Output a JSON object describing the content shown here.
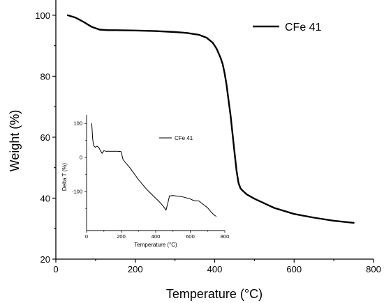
{
  "chart_data": [
    {
      "type": "line",
      "xlabel": "Temperature (°C)",
      "ylabel": "Weight (%)",
      "xlim": [
        0,
        800
      ],
      "ylim": [
        20,
        105
      ],
      "xticks": [
        0,
        200,
        400,
        600,
        800
      ],
      "yticks": [
        20,
        40,
        60,
        80,
        100
      ],
      "grid": false,
      "legend_position": "top-right",
      "series": [
        {
          "name": "CFe 41",
          "x": [
            30,
            50,
            70,
            90,
            110,
            130,
            150,
            200,
            250,
            300,
            330,
            360,
            380,
            395,
            405,
            415,
            420,
            425,
            430,
            435,
            440,
            445,
            450,
            455,
            460,
            465,
            470,
            480,
            500,
            550,
            600,
            650,
            700,
            750
          ],
          "y": [
            100,
            99.2,
            97.8,
            96.2,
            95.3,
            95.1,
            95.1,
            95.0,
            94.8,
            94.5,
            94.2,
            93.6,
            92.6,
            91.0,
            89.0,
            86.0,
            84.0,
            81.0,
            77.0,
            72.0,
            67.0,
            61.0,
            55.0,
            49.0,
            45.0,
            43.2,
            42.5,
            41.3,
            39.8,
            36.8,
            34.8,
            33.6,
            32.6,
            31.9
          ]
        }
      ]
    },
    {
      "type": "line",
      "xlabel": "Temperature (°C)",
      "ylabel": "Delta T (%)",
      "xlim": [
        0,
        800
      ],
      "ylim": [
        -215,
        125
      ],
      "xticks": [
        0,
        200,
        400,
        600,
        800
      ],
      "yticks": [
        -100,
        0,
        100
      ],
      "grid": false,
      "legend_position": "top-right",
      "series": [
        {
          "name": "CFe 41",
          "x": [
            30,
            35,
            40,
            45,
            50,
            60,
            70,
            80,
            90,
            100,
            110,
            130,
            150,
            180,
            200,
            210,
            220,
            250,
            300,
            350,
            400,
            430,
            450,
            460,
            470,
            480,
            500,
            550,
            600,
            620,
            650,
            680,
            700,
            720,
            740,
            750
          ],
          "y": [
            100,
            55,
            38,
            32,
            30,
            33,
            30,
            20,
            12,
            20,
            18,
            18,
            18,
            18,
            17,
            -5,
            -12,
            -30,
            -65,
            -95,
            -120,
            -135,
            -148,
            -155,
            -135,
            -113,
            -112,
            -115,
            -122,
            -127,
            -128,
            -140,
            -148,
            -160,
            -170,
            -173
          ]
        }
      ]
    }
  ]
}
